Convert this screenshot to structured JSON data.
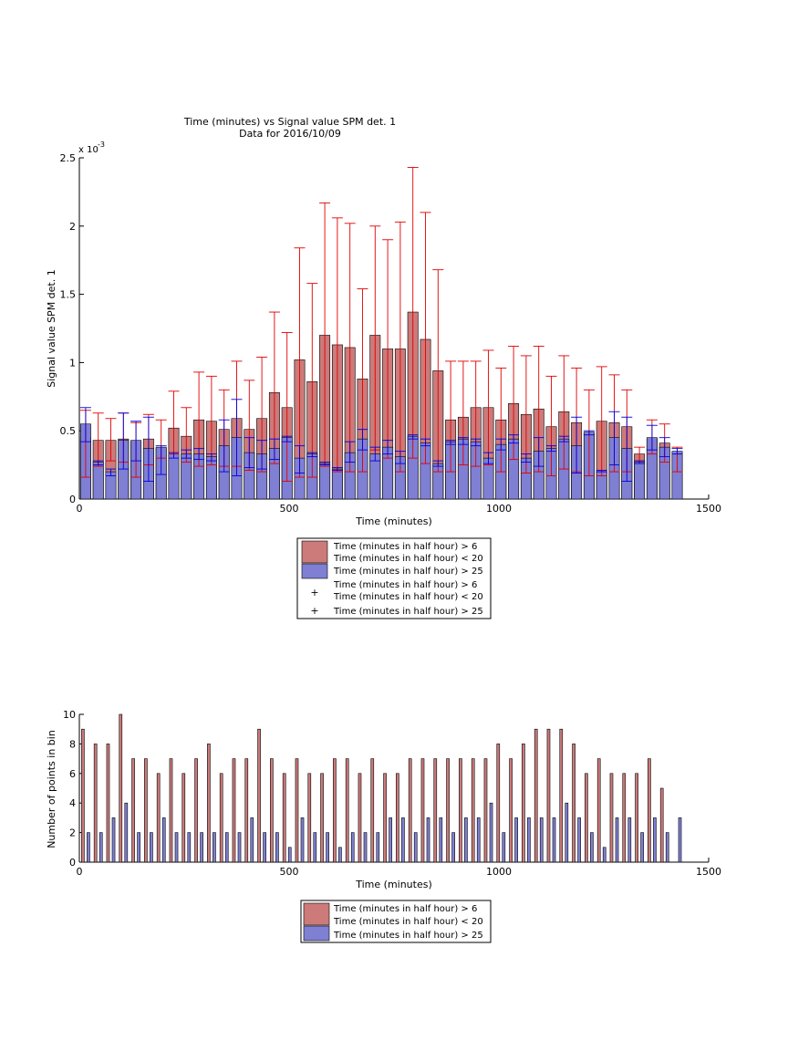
{
  "colors": {
    "red_fill": "#cc7a7a",
    "blue_fill": "#7f7fd4",
    "red_err": "#e00000",
    "blue_err": "#0000e0"
  },
  "chart_data": [
    {
      "type": "bar",
      "title": "Time (minutes) vs Signal value SPM det. 1",
      "subtitle": "Data for 2016/10/09",
      "xlabel": "Time (minutes)",
      "ylabel": "Signal value SPM det. 1",
      "y_exponent": "x 10",
      "y_exponent_power": "-3",
      "xlim": [
        0,
        1500
      ],
      "ylim": [
        0,
        2.5
      ],
      "x_ticks": [
        0,
        500,
        1000,
        1500
      ],
      "y_ticks": [
        0,
        0.5,
        1,
        1.5,
        2,
        2.5
      ],
      "x": [
        15,
        45,
        75,
        105,
        135,
        165,
        195,
        225,
        255,
        285,
        315,
        345,
        375,
        405,
        435,
        465,
        495,
        525,
        555,
        585,
        615,
        645,
        675,
        705,
        735,
        765,
        795,
        825,
        855,
        885,
        915,
        945,
        975,
        1005,
        1035,
        1065,
        1095,
        1125,
        1155,
        1185,
        1215,
        1245,
        1275,
        1305,
        1335,
        1365,
        1395,
        1425
      ],
      "series": [
        {
          "name": "Time (minutes in half hour) > 6",
          "name2": "Time (minutes in half hour) < 20",
          "values": [
            0.45,
            0.43,
            0.43,
            0.44,
            0.42,
            0.44,
            0.37,
            0.52,
            0.46,
            0.58,
            0.57,
            0.51,
            0.59,
            0.51,
            0.59,
            0.78,
            0.67,
            1.02,
            0.86,
            1.2,
            1.13,
            1.11,
            0.88,
            1.2,
            1.1,
            1.1,
            1.37,
            1.17,
            0.94,
            0.58,
            0.6,
            0.67,
            0.67,
            0.58,
            0.7,
            0.62,
            0.66,
            0.53,
            0.64,
            0.56,
            0.48,
            0.57,
            0.56,
            0.53,
            0.33,
            0.44,
            0.41,
            0.34
          ],
          "err_upper": [
            0.65,
            0.63,
            0.59,
            0.63,
            0.56,
            0.62,
            0.58,
            0.79,
            0.67,
            0.93,
            0.9,
            0.8,
            1.01,
            0.87,
            1.04,
            1.37,
            1.22,
            1.84,
            1.58,
            2.17,
            2.06,
            2.02,
            1.54,
            2.0,
            1.9,
            2.03,
            2.43,
            2.1,
            1.68,
            1.01,
            1.01,
            1.01,
            1.09,
            0.96,
            1.12,
            1.05,
            1.12,
            0.9,
            1.05,
            0.96,
            0.8,
            0.97,
            0.91,
            0.8,
            0.38,
            0.58,
            0.55,
            0.38
          ],
          "err_lower": [
            0.16,
            0.24,
            0.28,
            0.27,
            0.16,
            0.25,
            0.3,
            0.33,
            0.27,
            0.24,
            0.25,
            0.24,
            0.24,
            0.21,
            0.2,
            0.26,
            0.13,
            0.16,
            0.16,
            0.24,
            0.2,
            0.2,
            0.2,
            0.36,
            0.3,
            0.2,
            0.3,
            0.26,
            0.2,
            0.2,
            0.25,
            0.24,
            0.25,
            0.2,
            0.29,
            0.19,
            0.2,
            0.17,
            0.22,
            0.2,
            0.17,
            0.17,
            0.2,
            0.2,
            0.28,
            0.33,
            0.27,
            0.2
          ]
        },
        {
          "name": "Time (minutes in half hour) > 25",
          "values": [
            0.55,
            0.27,
            0.2,
            0.43,
            0.43,
            0.37,
            0.38,
            0.33,
            0.33,
            0.33,
            0.31,
            0.39,
            0.45,
            0.34,
            0.33,
            0.37,
            0.45,
            0.3,
            0.33,
            0.26,
            0.22,
            0.34,
            0.44,
            0.33,
            0.38,
            0.31,
            0.46,
            0.41,
            0.26,
            0.42,
            0.44,
            0.42,
            0.3,
            0.4,
            0.44,
            0.3,
            0.35,
            0.37,
            0.44,
            0.39,
            0.49,
            0.2,
            0.45,
            0.37,
            0.27,
            0.45,
            0.38,
            0.35
          ],
          "err_upper": [
            0.67,
            0.28,
            0.22,
            0.63,
            0.57,
            0.6,
            0.39,
            0.34,
            0.36,
            0.37,
            0.33,
            0.58,
            0.73,
            0.45,
            0.43,
            0.44,
            0.46,
            0.39,
            0.34,
            0.27,
            0.23,
            0.42,
            0.51,
            0.38,
            0.43,
            0.35,
            0.47,
            0.44,
            0.28,
            0.43,
            0.45,
            0.44,
            0.34,
            0.44,
            0.47,
            0.33,
            0.45,
            0.39,
            0.46,
            0.6,
            0.5,
            0.21,
            0.64,
            0.6,
            0.28,
            0.54,
            0.45,
            0.37
          ],
          "err_lower": [
            0.42,
            0.25,
            0.17,
            0.22,
            0.28,
            0.13,
            0.18,
            0.3,
            0.3,
            0.29,
            0.28,
            0.2,
            0.17,
            0.23,
            0.22,
            0.29,
            0.42,
            0.19,
            0.31,
            0.25,
            0.21,
            0.27,
            0.36,
            0.28,
            0.33,
            0.26,
            0.44,
            0.39,
            0.24,
            0.4,
            0.4,
            0.39,
            0.26,
            0.36,
            0.41,
            0.27,
            0.24,
            0.35,
            0.42,
            0.19,
            0.47,
            0.2,
            0.25,
            0.13,
            0.26,
            0.36,
            0.31,
            0.33
          ]
        }
      ],
      "legend": [
        "Time (minutes in half hour) > 6",
        "Time (minutes in half hour) < 20",
        "Time (minutes in half hour) > 25",
        "Time (minutes in half hour) > 6",
        "Time (minutes in half hour) < 20",
        "Time (minutes in half hour) > 25"
      ],
      "legend_placement": "below"
    },
    {
      "type": "bar",
      "xlabel": "Time (minutes)",
      "ylabel": "Number of points in bin",
      "xlim": [
        0,
        1500
      ],
      "ylim": [
        0,
        10
      ],
      "x_ticks": [
        0,
        500,
        1000,
        1500
      ],
      "y_ticks": [
        0,
        2,
        4,
        6,
        8,
        10
      ],
      "x": [
        15,
        45,
        75,
        105,
        135,
        165,
        195,
        225,
        255,
        285,
        315,
        345,
        375,
        405,
        435,
        465,
        495,
        525,
        555,
        585,
        615,
        645,
        675,
        705,
        735,
        765,
        795,
        825,
        855,
        885,
        915,
        945,
        975,
        1005,
        1035,
        1065,
        1095,
        1125,
        1155,
        1185,
        1215,
        1245,
        1275,
        1305,
        1335,
        1365,
        1395,
        1425
      ],
      "series": [
        {
          "name": "Time (minutes in half hour) > 6",
          "name2": "Time (minutes in half hour) < 20",
          "values": [
            9,
            8,
            8,
            10,
            7,
            7,
            6,
            7,
            6,
            7,
            8,
            6,
            7,
            7,
            9,
            7,
            6,
            7,
            6,
            6,
            7,
            7,
            6,
            7,
            6,
            6,
            7,
            7,
            7,
            7,
            7,
            7,
            7,
            8,
            7,
            8,
            9,
            9,
            9,
            8,
            6,
            7,
            6,
            6,
            6,
            7,
            5,
            0
          ],
          "values_note": ""
        },
        {
          "name": "Time (minutes in half hour) > 25",
          "values": [
            2,
            2,
            3,
            4,
            2,
            2,
            3,
            2,
            2,
            2,
            2,
            2,
            2,
            3,
            2,
            2,
            1,
            3,
            2,
            2,
            1,
            2,
            2,
            2,
            3,
            3,
            2,
            3,
            3,
            2,
            3,
            3,
            4,
            2,
            3,
            3,
            3,
            3,
            4,
            3,
            2,
            1,
            3,
            3,
            2,
            3,
            2,
            3
          ]
        }
      ],
      "legend": [
        "Time (minutes in half hour) > 6",
        "Time (minutes in half hour) < 20",
        "Time (minutes in half hour) > 25"
      ],
      "legend_placement": "below"
    }
  ]
}
